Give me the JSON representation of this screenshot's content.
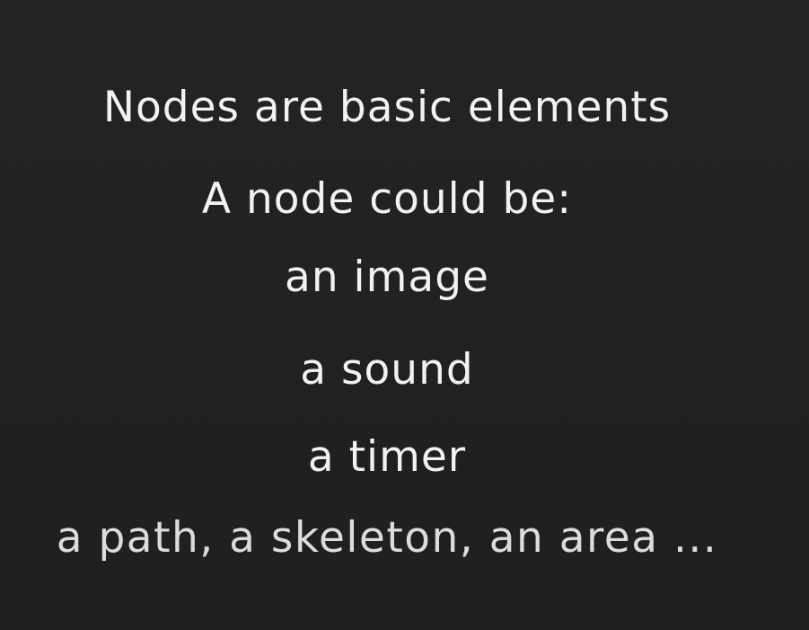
{
  "slide": {
    "lines": [
      "Nodes are basic elements",
      "A node could be:",
      "an image",
      "a sound",
      "a timer",
      "a path, a skeleton, an area ..."
    ]
  },
  "colors": {
    "background": "#232323",
    "text": "#f2f2f2"
  }
}
